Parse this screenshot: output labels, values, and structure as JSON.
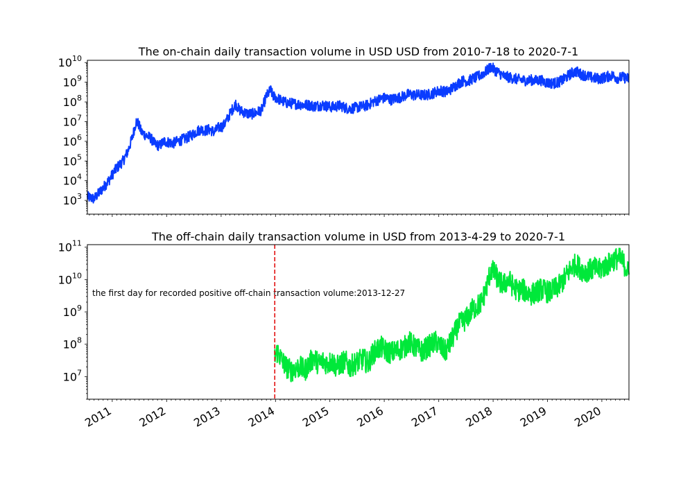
{
  "chart_data": [
    {
      "type": "line",
      "title": "The on-chain daily transaction volume in USD USD from 2010-7-18 to 2020-7-1",
      "xlabel": "",
      "ylabel": "",
      "yscale": "log",
      "ylim": [
        200,
        13000000000
      ],
      "xlim": [
        "2010-07-18",
        "2020-07-01"
      ],
      "y_ticks": [
        {
          "base": "10",
          "exp": "3",
          "value": 1000
        },
        {
          "base": "10",
          "exp": "4",
          "value": 10000
        },
        {
          "base": "10",
          "exp": "5",
          "value": 100000
        },
        {
          "base": "10",
          "exp": "6",
          "value": 1000000
        },
        {
          "base": "10",
          "exp": "7",
          "value": 10000000
        },
        {
          "base": "10",
          "exp": "8",
          "value": 100000000
        },
        {
          "base": "10",
          "exp": "9",
          "value": 1000000000
        },
        {
          "base": "10",
          "exp": "10",
          "value": 10000000000
        }
      ],
      "series": [
        {
          "color": "#0a3cff",
          "x": [
            "2010-07-18",
            "2010-09-01",
            "2010-10-15",
            "2010-11-15",
            "2010-12-15",
            "2011-01-15",
            "2011-02-15",
            "2011-03-15",
            "2011-04-15",
            "2011-05-15",
            "2011-06-10",
            "2011-06-25",
            "2011-07-15",
            "2011-08-15",
            "2011-09-15",
            "2011-10-15",
            "2011-11-15",
            "2011-12-15",
            "2012-01-15",
            "2012-02-15",
            "2012-03-15",
            "2012-04-15",
            "2012-05-15",
            "2012-06-15",
            "2012-07-15",
            "2012-08-15",
            "2012-09-15",
            "2012-10-15",
            "2012-11-15",
            "2012-12-15",
            "2013-01-15",
            "2013-02-15",
            "2013-03-15",
            "2013-04-10",
            "2013-05-01",
            "2013-06-01",
            "2013-07-01",
            "2013-08-01",
            "2013-09-01",
            "2013-10-01",
            "2013-11-01",
            "2013-11-30",
            "2013-12-15",
            "2014-01-15",
            "2014-02-15",
            "2014-03-15",
            "2014-04-15",
            "2014-05-15",
            "2014-06-15",
            "2014-07-15",
            "2014-08-15",
            "2014-09-15",
            "2014-10-15",
            "2014-11-15",
            "2014-12-15",
            "2015-01-15",
            "2015-02-15",
            "2015-03-15",
            "2015-04-15",
            "2015-05-15",
            "2015-06-15",
            "2015-07-15",
            "2015-08-15",
            "2015-09-15",
            "2015-10-15",
            "2015-11-15",
            "2015-12-15",
            "2016-01-15",
            "2016-02-15",
            "2016-03-15",
            "2016-04-15",
            "2016-05-15",
            "2016-06-15",
            "2016-07-15",
            "2016-08-15",
            "2016-09-15",
            "2016-10-15",
            "2016-11-15",
            "2016-12-15",
            "2017-01-15",
            "2017-02-15",
            "2017-03-15",
            "2017-04-15",
            "2017-05-15",
            "2017-06-15",
            "2017-07-15",
            "2017-08-15",
            "2017-09-15",
            "2017-10-15",
            "2017-11-15",
            "2017-12-17",
            "2018-01-15",
            "2018-02-15",
            "2018-03-15",
            "2018-04-15",
            "2018-05-15",
            "2018-06-15",
            "2018-07-15",
            "2018-08-15",
            "2018-09-15",
            "2018-10-15",
            "2018-11-15",
            "2018-12-15",
            "2019-01-15",
            "2019-02-15",
            "2019-03-15",
            "2019-04-15",
            "2019-05-15",
            "2019-06-15",
            "2019-07-15",
            "2019-08-15",
            "2019-09-15",
            "2019-10-15",
            "2019-11-15",
            "2019-12-15",
            "2020-01-15",
            "2020-02-15",
            "2020-03-15",
            "2020-04-15",
            "2020-05-15",
            "2020-07-01"
          ],
          "y": [
            1500,
            1200,
            3000,
            6000,
            12000,
            30000,
            60000,
            100000,
            300000,
            1500000,
            10000000,
            8000000,
            3000000,
            2000000,
            1500000,
            700000,
            600000,
            1000000,
            900000,
            800000,
            1000000,
            1200000,
            1500000,
            2000000,
            3000000,
            4000000,
            3500000,
            4000000,
            3000000,
            5000000,
            6000000,
            15000000,
            40000000,
            80000000,
            40000000,
            30000000,
            25000000,
            25000000,
            30000000,
            40000000,
            200000000,
            400000000,
            200000000,
            150000000,
            110000000,
            90000000,
            85000000,
            80000000,
            75000000,
            70000000,
            70000000,
            60000000,
            65000000,
            70000000,
            60000000,
            55000000,
            60000000,
            65000000,
            50000000,
            45000000,
            50000000,
            55000000,
            60000000,
            70000000,
            100000000,
            120000000,
            150000000,
            160000000,
            130000000,
            150000000,
            170000000,
            200000000,
            250000000,
            220000000,
            230000000,
            220000000,
            230000000,
            260000000,
            330000000,
            380000000,
            320000000,
            400000000,
            600000000,
            900000000,
            1200000000,
            1100000000,
            1500000000,
            1800000000,
            2500000000,
            3500000000,
            6000000000,
            4000000000,
            2800000000,
            2000000000,
            1800000000,
            1600000000,
            1400000000,
            1300000000,
            1200000000,
            1300000000,
            1200000000,
            1300000000,
            1000000000,
            900000000,
            900000000,
            1000000000,
            1300000000,
            2000000000,
            3000000000,
            3500000000,
            2500000000,
            2200000000,
            1800000000,
            1600000000,
            1500000000,
            1700000000,
            2000000000,
            2200000000,
            1600000000,
            1800000000,
            1500000000
          ],
          "noise": 0.55
        }
      ]
    },
    {
      "type": "line",
      "title": "The off-chain daily transaction volume in USD from 2013-4-29 to 2020-7-1",
      "xlabel": "",
      "ylabel": "",
      "yscale": "log",
      "ylim": [
        2000000,
        120000000000
      ],
      "xlim": [
        "2010-07-18",
        "2020-07-01"
      ],
      "y_ticks": [
        {
          "base": "10",
          "exp": "7",
          "value": 10000000
        },
        {
          "base": "10",
          "exp": "8",
          "value": 100000000
        },
        {
          "base": "10",
          "exp": "9",
          "value": 1000000000
        },
        {
          "base": "10",
          "exp": "10",
          "value": 10000000000
        },
        {
          "base": "10",
          "exp": "11",
          "value": 100000000000
        }
      ],
      "x_ticks": [
        "2011",
        "2012",
        "2013",
        "2014",
        "2015",
        "2016",
        "2017",
        "2018",
        "2019",
        "2020"
      ],
      "annotation": {
        "text": "the first day for recorded positive off-chain transaction volume:2013-12-27",
        "date": "2013-12-27",
        "line_color": "#e00000"
      },
      "series": [
        {
          "color": "#00e83a",
          "x": [
            "2013-12-27",
            "2014-01-15",
            "2014-02-15",
            "2014-03-15",
            "2014-04-15",
            "2014-05-15",
            "2014-06-15",
            "2014-07-15",
            "2014-08-15",
            "2014-09-15",
            "2014-10-15",
            "2014-11-15",
            "2014-12-15",
            "2015-01-15",
            "2015-02-15",
            "2015-03-15",
            "2015-04-15",
            "2015-05-15",
            "2015-06-15",
            "2015-07-15",
            "2015-08-15",
            "2015-09-15",
            "2015-10-15",
            "2015-11-15",
            "2015-12-15",
            "2016-01-15",
            "2016-02-15",
            "2016-03-15",
            "2016-04-15",
            "2016-05-15",
            "2016-06-15",
            "2016-07-15",
            "2016-08-15",
            "2016-09-15",
            "2016-10-15",
            "2016-11-15",
            "2016-12-15",
            "2017-01-15",
            "2017-02-15",
            "2017-03-15",
            "2017-04-15",
            "2017-05-15",
            "2017-06-15",
            "2017-07-15",
            "2017-08-15",
            "2017-09-15",
            "2017-10-15",
            "2017-11-15",
            "2017-12-17",
            "2018-01-15",
            "2018-02-15",
            "2018-03-15",
            "2018-04-15",
            "2018-05-15",
            "2018-06-15",
            "2018-07-15",
            "2018-08-15",
            "2018-09-15",
            "2018-10-15",
            "2018-11-15",
            "2018-12-15",
            "2019-01-15",
            "2019-02-15",
            "2019-03-15",
            "2019-04-15",
            "2019-05-15",
            "2019-06-15",
            "2019-07-15",
            "2019-08-15",
            "2019-09-15",
            "2019-10-15",
            "2019-11-15",
            "2019-12-15",
            "2020-01-15",
            "2020-02-15",
            "2020-03-15",
            "2020-04-15",
            "2020-05-15",
            "2020-07-01"
          ],
          "y": [
            40000000,
            60000000,
            30000000,
            20000000,
            15000000,
            18000000,
            20000000,
            15000000,
            25000000,
            40000000,
            25000000,
            30000000,
            25000000,
            30000000,
            20000000,
            25000000,
            30000000,
            20000000,
            25000000,
            30000000,
            35000000,
            25000000,
            50000000,
            70000000,
            80000000,
            60000000,
            55000000,
            60000000,
            70000000,
            80000000,
            120000000,
            90000000,
            70000000,
            60000000,
            80000000,
            100000000,
            120000000,
            80000000,
            60000000,
            100000000,
            200000000,
            400000000,
            500000000,
            700000000,
            1200000000,
            1500000000,
            2000000000,
            5000000000,
            20000000000,
            15000000000,
            8000000000,
            7000000000,
            10000000000,
            6000000000,
            4500000000,
            5000000000,
            4000000000,
            3500000000,
            4000000000,
            5000000000,
            4500000000,
            4000000000,
            5000000000,
            6000000000,
            9000000000,
            15000000000,
            25000000000,
            30000000000,
            20000000000,
            18000000000,
            20000000000,
            22000000000,
            20000000000,
            25000000000,
            30000000000,
            40000000000,
            45000000000,
            40000000000,
            15000000000
          ],
          "noise": 0.7
        }
      ]
    }
  ]
}
